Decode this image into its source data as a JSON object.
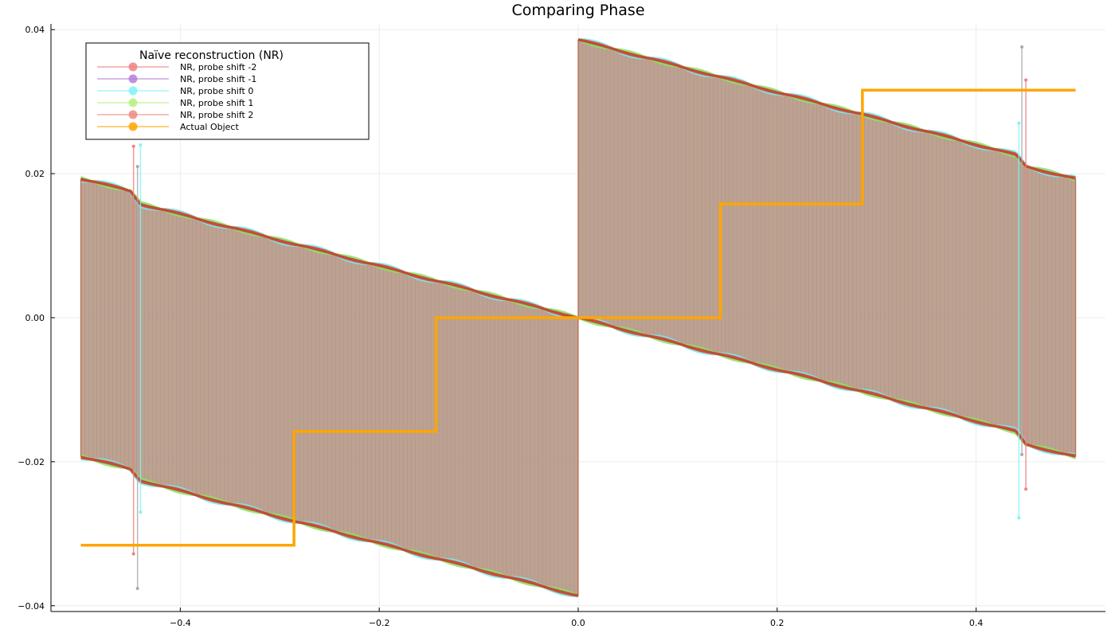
{
  "chart_data": {
    "type": "line",
    "title": "Comparing Phase",
    "xlabel": "",
    "ylabel": "",
    "xlim": [
      -0.53,
      0.53
    ],
    "ylim": [
      -0.0408,
      0.0408
    ],
    "xticks": [
      -0.4,
      -0.2,
      0.0,
      0.2,
      0.4
    ],
    "xtick_labels": [
      "−0.4",
      "−0.2",
      "0.0",
      "0.2",
      "0.4"
    ],
    "yticks": [
      -0.04,
      -0.02,
      0.0,
      0.02,
      0.04
    ],
    "ytick_labels": [
      "−0.04",
      "−0.02",
      "0.00",
      "0.02",
      "0.04"
    ],
    "grid": true,
    "legend": {
      "title": "Naïve reconstruction (NR)",
      "placement": "top-left",
      "entries": [
        {
          "label": "NR, probe shift -2",
          "color": "#f08080"
        },
        {
          "label": "NR, probe shift -1",
          "color": "#b57edc"
        },
        {
          "label": "NR, probe shift 0",
          "color": "#7ff5f5"
        },
        {
          "label": "NR, probe shift 1",
          "color": "#b5f07f"
        },
        {
          "label": "NR, probe shift 2",
          "color": "#f08a80"
        },
        {
          "label": "Actual Object",
          "color": "#ffa500"
        }
      ]
    },
    "envelope": {
      "description_color": "#b99d8c",
      "upper_left": {
        "x": [
          -0.5,
          -0.45,
          -0.44,
          0.0
        ],
        "y": [
          0.0193,
          0.0176,
          0.0158,
          0.0
        ]
      },
      "upper_right": {
        "x": [
          0.0,
          0.44,
          0.45,
          0.5
        ],
        "y": [
          0.0386,
          0.0226,
          0.021,
          0.0193
        ]
      },
      "lower_left": {
        "x": [
          -0.5,
          -0.45,
          -0.44,
          0.0
        ],
        "y": [
          -0.0193,
          -0.021,
          -0.0226,
          -0.0386
        ]
      },
      "lower_right": {
        "x": [
          0.0,
          0.44,
          0.45,
          0.5
        ],
        "y": [
          0.0,
          -0.0158,
          -0.0176,
          -0.0193
        ]
      }
    },
    "series": [
      {
        "name": "Actual Object",
        "color": "#ffa500",
        "x": [
          -0.5,
          -0.2857,
          -0.2857,
          -0.1429,
          -0.1429,
          0.1429,
          0.1429,
          0.2857,
          0.2857,
          0.5
        ],
        "y": [
          -0.0316,
          -0.0316,
          -0.0158,
          -0.0158,
          0.0,
          0.0,
          0.0158,
          0.0158,
          0.0316,
          0.0316
        ]
      }
    ],
    "spikes": [
      {
        "x": -0.447,
        "y0": -0.0328,
        "y1": 0.0238,
        "color": "#f08080"
      },
      {
        "x": -0.443,
        "y0": -0.0376,
        "y1": 0.021,
        "color": "#aaaaaa"
      },
      {
        "x": -0.44,
        "y0": -0.027,
        "y1": 0.024,
        "color": "#7ff5f5"
      },
      {
        "x": 0.443,
        "y0": -0.0278,
        "y1": 0.027,
        "color": "#7ff5f5"
      },
      {
        "x": 0.446,
        "y0": -0.019,
        "y1": 0.0376,
        "color": "#aaaaaa"
      },
      {
        "x": 0.45,
        "y0": -0.0238,
        "y1": 0.033,
        "color": "#f08080"
      }
    ],
    "colors": {
      "red": "#e8302a",
      "cyan": "#6ff0f0",
      "green": "#8cdf6a",
      "brown": "#b5512c",
      "fill": "#b99d8c",
      "hatch": "#a88f80"
    }
  }
}
